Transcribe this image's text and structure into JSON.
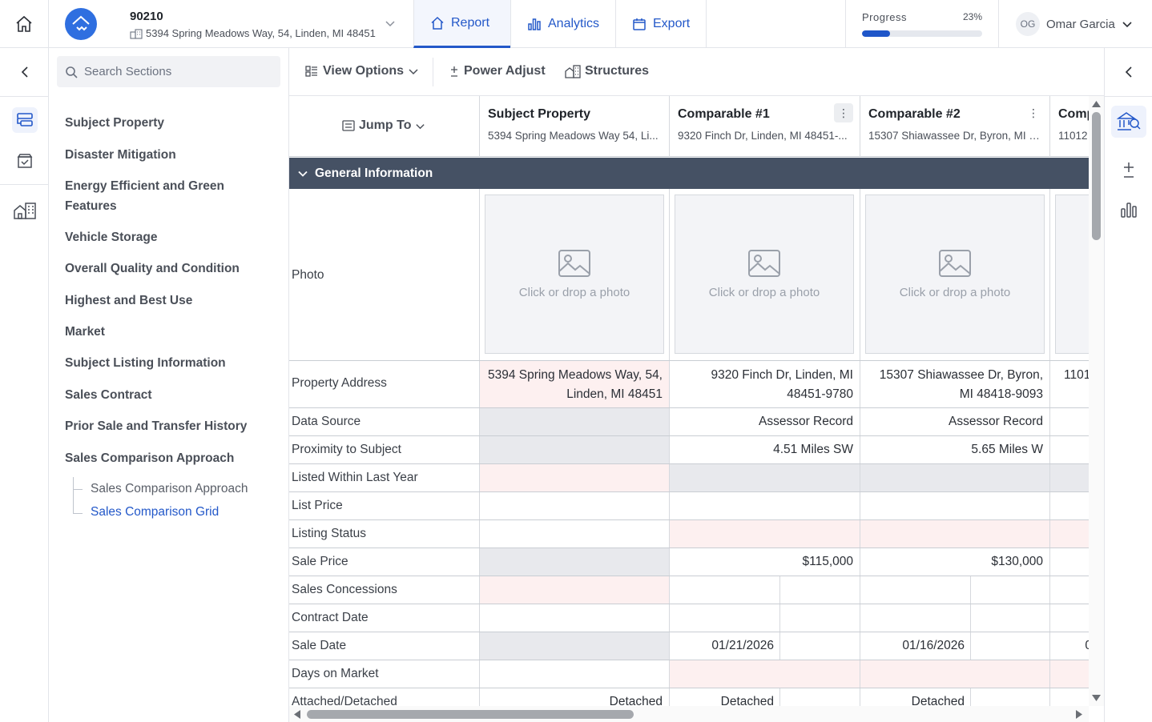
{
  "header": {
    "file_number": "90210",
    "file_address": "5394 Spring Meadows Way, 54, Linden, MI 48451",
    "tabs": [
      {
        "label": "Report",
        "icon": "home-icon",
        "active": true
      },
      {
        "label": "Analytics",
        "icon": "bar-chart-icon",
        "active": false
      },
      {
        "label": "Export",
        "icon": "export-icon",
        "active": false
      }
    ],
    "progress": {
      "label": "Progress",
      "value_text": "23%",
      "percent": 23
    },
    "user": {
      "initials": "OG",
      "name": "Omar Garcia"
    }
  },
  "sidebar": {
    "search_placeholder": "Search Sections",
    "items": [
      {
        "label": "Subject Property"
      },
      {
        "label": "Disaster Mitigation"
      },
      {
        "label": "Energy Efficient and Green Features"
      },
      {
        "label": "Vehicle Storage"
      },
      {
        "label": "Overall Quality and Condition"
      },
      {
        "label": "Highest and Best Use"
      },
      {
        "label": "Market"
      },
      {
        "label": "Subject Listing Information"
      },
      {
        "label": "Sales Contract"
      },
      {
        "label": "Prior Sale and Transfer History"
      },
      {
        "label": "Sales Comparison Approach"
      }
    ],
    "sub_items": [
      {
        "label": "Sales Comparison Approach",
        "active": false
      },
      {
        "label": "Sales Comparison Grid",
        "active": true
      }
    ]
  },
  "toolbar": {
    "view_options": "View Options",
    "power_adjust": "Power Adjust",
    "structures": "Structures"
  },
  "grid": {
    "jump_to": "Jump To",
    "columns": [
      {
        "name": "Subject Property",
        "address": "5394 Spring Meadows Way 54, Li..."
      },
      {
        "name": "Comparable #1",
        "address": "9320 Finch Dr, Linden, MI 48451-..."
      },
      {
        "name": "Comparable #2",
        "address": "15307 Shiawassee Dr, Byron, MI 4..."
      },
      {
        "name": "Comp",
        "address": "11012"
      }
    ],
    "section": "General Information",
    "photo_label": "Photo",
    "photo_prompt": "Click or drop a photo",
    "rows": [
      {
        "label": "Property Address",
        "values": [
          "5394 Spring Meadows Way, 54, Linden, MI 48451",
          "9320 Finch Dr, Linden, MI 48451-9780",
          "15307 Shiawassee Dr, Byron, MI 48418-9093",
          "1101"
        ]
      },
      {
        "label": "Data Source",
        "values": [
          "",
          "Assessor Record",
          "Assessor Record",
          ""
        ]
      },
      {
        "label": "Proximity to Subject",
        "values": [
          "",
          "4.51 Miles SW",
          "5.65 Miles W",
          ""
        ]
      },
      {
        "label": "Listed Within Last Year",
        "values": [
          "",
          "",
          "",
          ""
        ]
      },
      {
        "label": "List Price",
        "values": [
          "",
          "",
          "",
          ""
        ]
      },
      {
        "label": "Listing Status",
        "values": [
          "",
          "",
          "",
          ""
        ]
      },
      {
        "label": "Sale Price",
        "values": [
          "",
          "$115,000",
          "$130,000",
          ""
        ]
      },
      {
        "label": "Sales Concessions",
        "values": [
          "",
          "",
          "",
          ""
        ]
      },
      {
        "label": "Contract Date",
        "values": [
          "",
          "",
          "",
          ""
        ]
      },
      {
        "label": "Sale Date",
        "values": [
          "",
          "01/21/2026",
          "01/16/2026",
          "0"
        ]
      },
      {
        "label": "Days on Market",
        "values": [
          "",
          "",
          "",
          ""
        ]
      },
      {
        "label": "Attached/Detached",
        "values": [
          "Detached",
          "Detached",
          "Detached",
          ""
        ]
      }
    ]
  }
}
